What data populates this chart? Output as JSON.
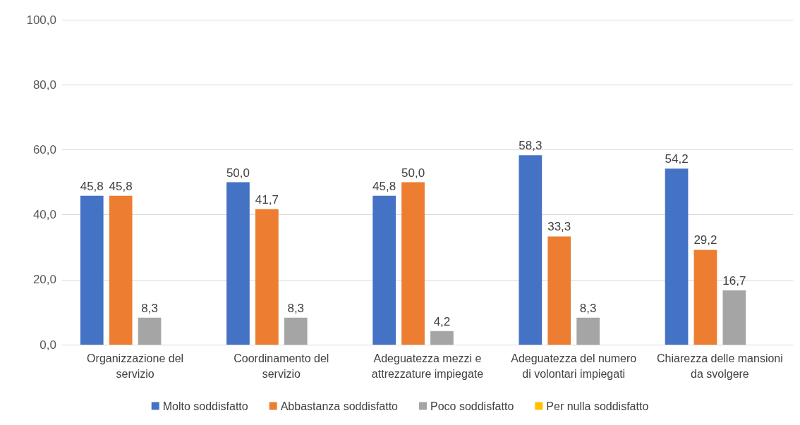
{
  "chart_data": {
    "type": "bar",
    "categories": [
      "Organizzazione del\nservizio",
      "Coordinamento del\nservizio",
      "Adeguatezza mezzi e\nattrezzature impiegate",
      "Adeguatezza del numero\ndi volontari impiegati",
      "Chiarezza delle mansioni\nda svolgere"
    ],
    "series": [
      {
        "name": "Molto soddisfatto",
        "color": "#4472c4",
        "values": [
          45.8,
          50.0,
          45.8,
          58.3,
          54.2
        ],
        "value_labels": [
          "45,8",
          "50,0",
          "45,8",
          "58,3",
          "54,2"
        ]
      },
      {
        "name": "Abbastanza soddisfatto",
        "color": "#ed7d31",
        "values": [
          45.8,
          41.7,
          50.0,
          33.3,
          29.2
        ],
        "value_labels": [
          "45,8",
          "41,7",
          "50,0",
          "33,3",
          "29,2"
        ]
      },
      {
        "name": "Poco soddisfatto",
        "color": "#a5a5a5",
        "values": [
          8.3,
          8.3,
          4.2,
          8.3,
          16.7
        ],
        "value_labels": [
          "8,3",
          "8,3",
          "4,2",
          "8,3",
          "16,7"
        ]
      },
      {
        "name": "Per nulla soddisfatto",
        "color": "#ffc000",
        "values": [
          0,
          0,
          0,
          0,
          0
        ],
        "value_labels": [
          null,
          null,
          null,
          null,
          null
        ]
      }
    ],
    "ylim": [
      0,
      100
    ],
    "yticks": [
      {
        "value": 0,
        "label": "0,0"
      },
      {
        "value": 20,
        "label": "20,0"
      },
      {
        "value": 40,
        "label": "40,0"
      },
      {
        "value": 60,
        "label": "60,0"
      },
      {
        "value": 80,
        "label": "80,0"
      },
      {
        "value": 100,
        "label": "100,0"
      }
    ],
    "grid": "y",
    "legend": "bottom"
  }
}
